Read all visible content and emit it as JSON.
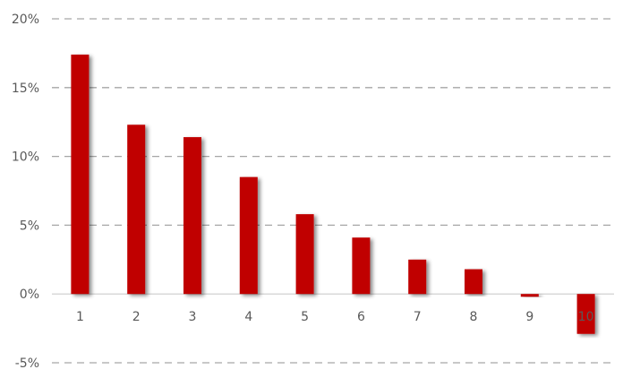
{
  "chart_data": {
    "type": "bar",
    "title": "",
    "xlabel": "",
    "ylabel": "",
    "categories": [
      "1",
      "2",
      "3",
      "4",
      "5",
      "6",
      "7",
      "8",
      "9",
      "10"
    ],
    "values": [
      17.4,
      12.3,
      11.4,
      8.5,
      5.8,
      4.1,
      2.5,
      1.8,
      -0.2,
      -2.9
    ],
    "value_unit": "%",
    "ylim": [
      -5,
      20
    ],
    "yticks": [
      20,
      15,
      10,
      5,
      0,
      -5
    ],
    "ytick_labels": [
      "20%",
      "15%",
      "10%",
      "5%",
      "0%",
      "-5%"
    ],
    "grid": "horizontal dashed",
    "legend": "none",
    "colors": {
      "bar": "#C00000",
      "grid": "#A6A6A6",
      "axis": "#D9D9D9",
      "text": "#595959"
    }
  }
}
